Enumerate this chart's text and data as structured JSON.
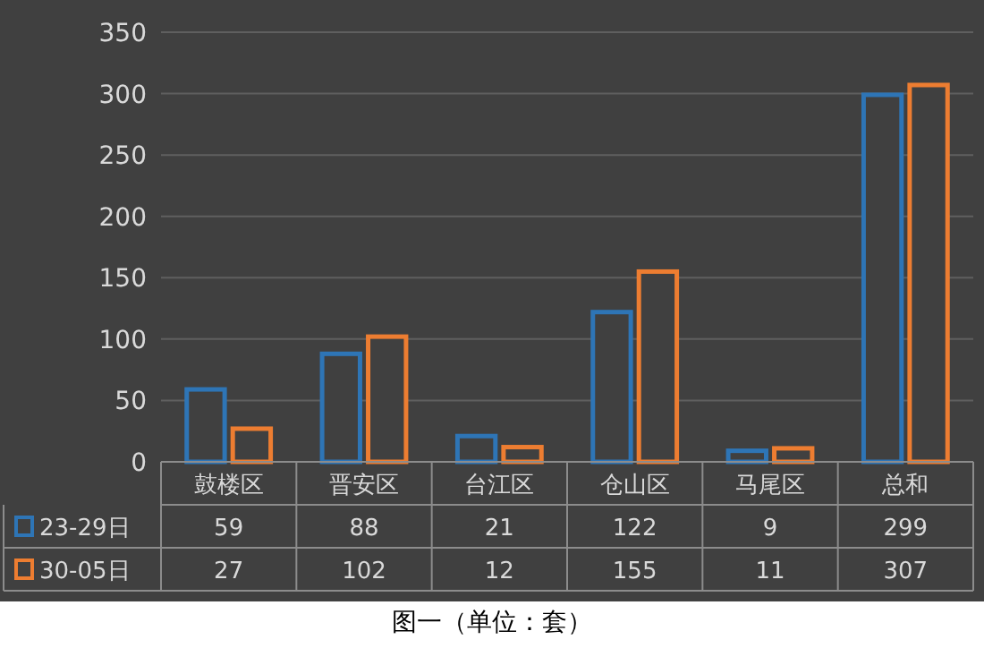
{
  "chart_data": {
    "type": "bar",
    "categories": [
      "鼓楼区",
      "晋安区",
      "台江区",
      "仓山区",
      "马尾区",
      "总和"
    ],
    "series": [
      {
        "name": "23-29日",
        "color": "#2e75b6",
        "values": [
          59,
          88,
          21,
          122,
          9,
          299
        ]
      },
      {
        "name": "30-05日",
        "color": "#ed7d31",
        "values": [
          27,
          102,
          12,
          155,
          11,
          307
        ]
      }
    ],
    "ylim": [
      0,
      350
    ],
    "yticks": [
      0,
      50,
      100,
      150,
      200,
      250,
      300,
      350
    ],
    "grid": "y",
    "data_labels": true,
    "legend": "bottom",
    "annotations": [
      "图一（单位：套）"
    ]
  }
}
